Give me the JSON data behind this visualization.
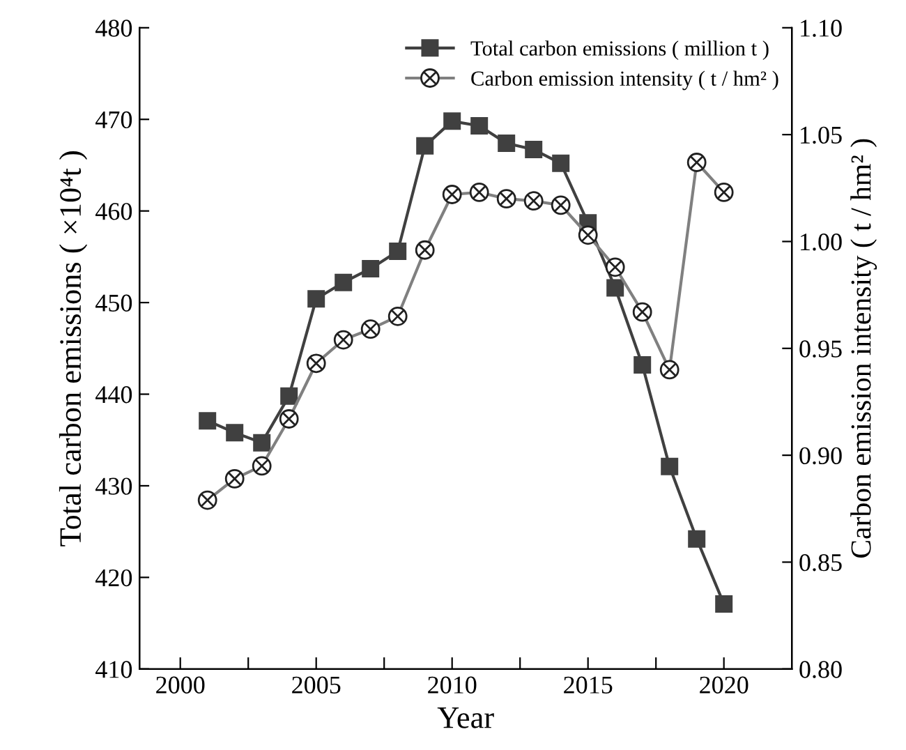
{
  "chart_data": {
    "type": "line",
    "xlabel": "Year",
    "ylabel": "Total carbon emissions ( ×10⁴t )",
    "y2label": "Carbon emission intensity ( t / hm² )",
    "x": [
      2001,
      2002,
      2003,
      2004,
      2005,
      2006,
      2007,
      2008,
      2009,
      2010,
      2011,
      2012,
      2013,
      2014,
      2015,
      2016,
      2017,
      2018,
      2019,
      2020
    ],
    "series": [
      {
        "name": "Total carbon emissions ( million t )",
        "color": "#404040",
        "marker": "square",
        "values": [
          437.1,
          435.8,
          434.7,
          439.8,
          450.4,
          452.2,
          453.7,
          455.6,
          467.1,
          469.8,
          469.3,
          467.4,
          466.7,
          465.2,
          458.7,
          451.6,
          443.2,
          432.1,
          424.2,
          417.1
        ]
      },
      {
        "name": "Carbon emission intensity ( t / hm² )",
        "color": "#808080",
        "marker": "cross",
        "axis": "y2",
        "values": [
          0.879,
          0.889,
          0.895,
          0.917,
          0.943,
          0.954,
          0.959,
          0.965,
          0.996,
          1.022,
          1.023,
          1.02,
          1.019,
          1.017,
          1.003,
          0.988,
          0.967,
          0.94,
          1.037,
          1.023
        ]
      }
    ],
    "xlim": [
      1998.5,
      2022.5
    ],
    "xticks": [
      2000,
      {
        "value": 2002.5,
        "label": null
      },
      2005,
      {
        "value": 2007.5,
        "label": null
      },
      2010,
      {
        "value": 2012.5,
        "label": null
      },
      2015,
      {
        "value": 2017.5,
        "label": null
      },
      2020
    ],
    "ylim": [
      410,
      480
    ],
    "yticks": [
      410,
      420,
      430,
      440,
      450,
      460,
      470,
      480
    ],
    "y2lim": [
      0.8,
      1.1
    ],
    "y2ticks": [
      {
        "value": 0.8,
        "label": "0.80"
      },
      {
        "value": 0.85,
        "label": "0.85"
      },
      {
        "value": 0.9,
        "label": "0.90"
      },
      {
        "value": 0.95,
        "label": "0.95"
      },
      {
        "value": 1.0,
        "label": "1.00"
      },
      {
        "value": 1.05,
        "label": "1.05"
      },
      {
        "value": 1.1,
        "label": "1.10"
      }
    ],
    "grid": false,
    "legend": "top right",
    "line_style": "solid"
  }
}
